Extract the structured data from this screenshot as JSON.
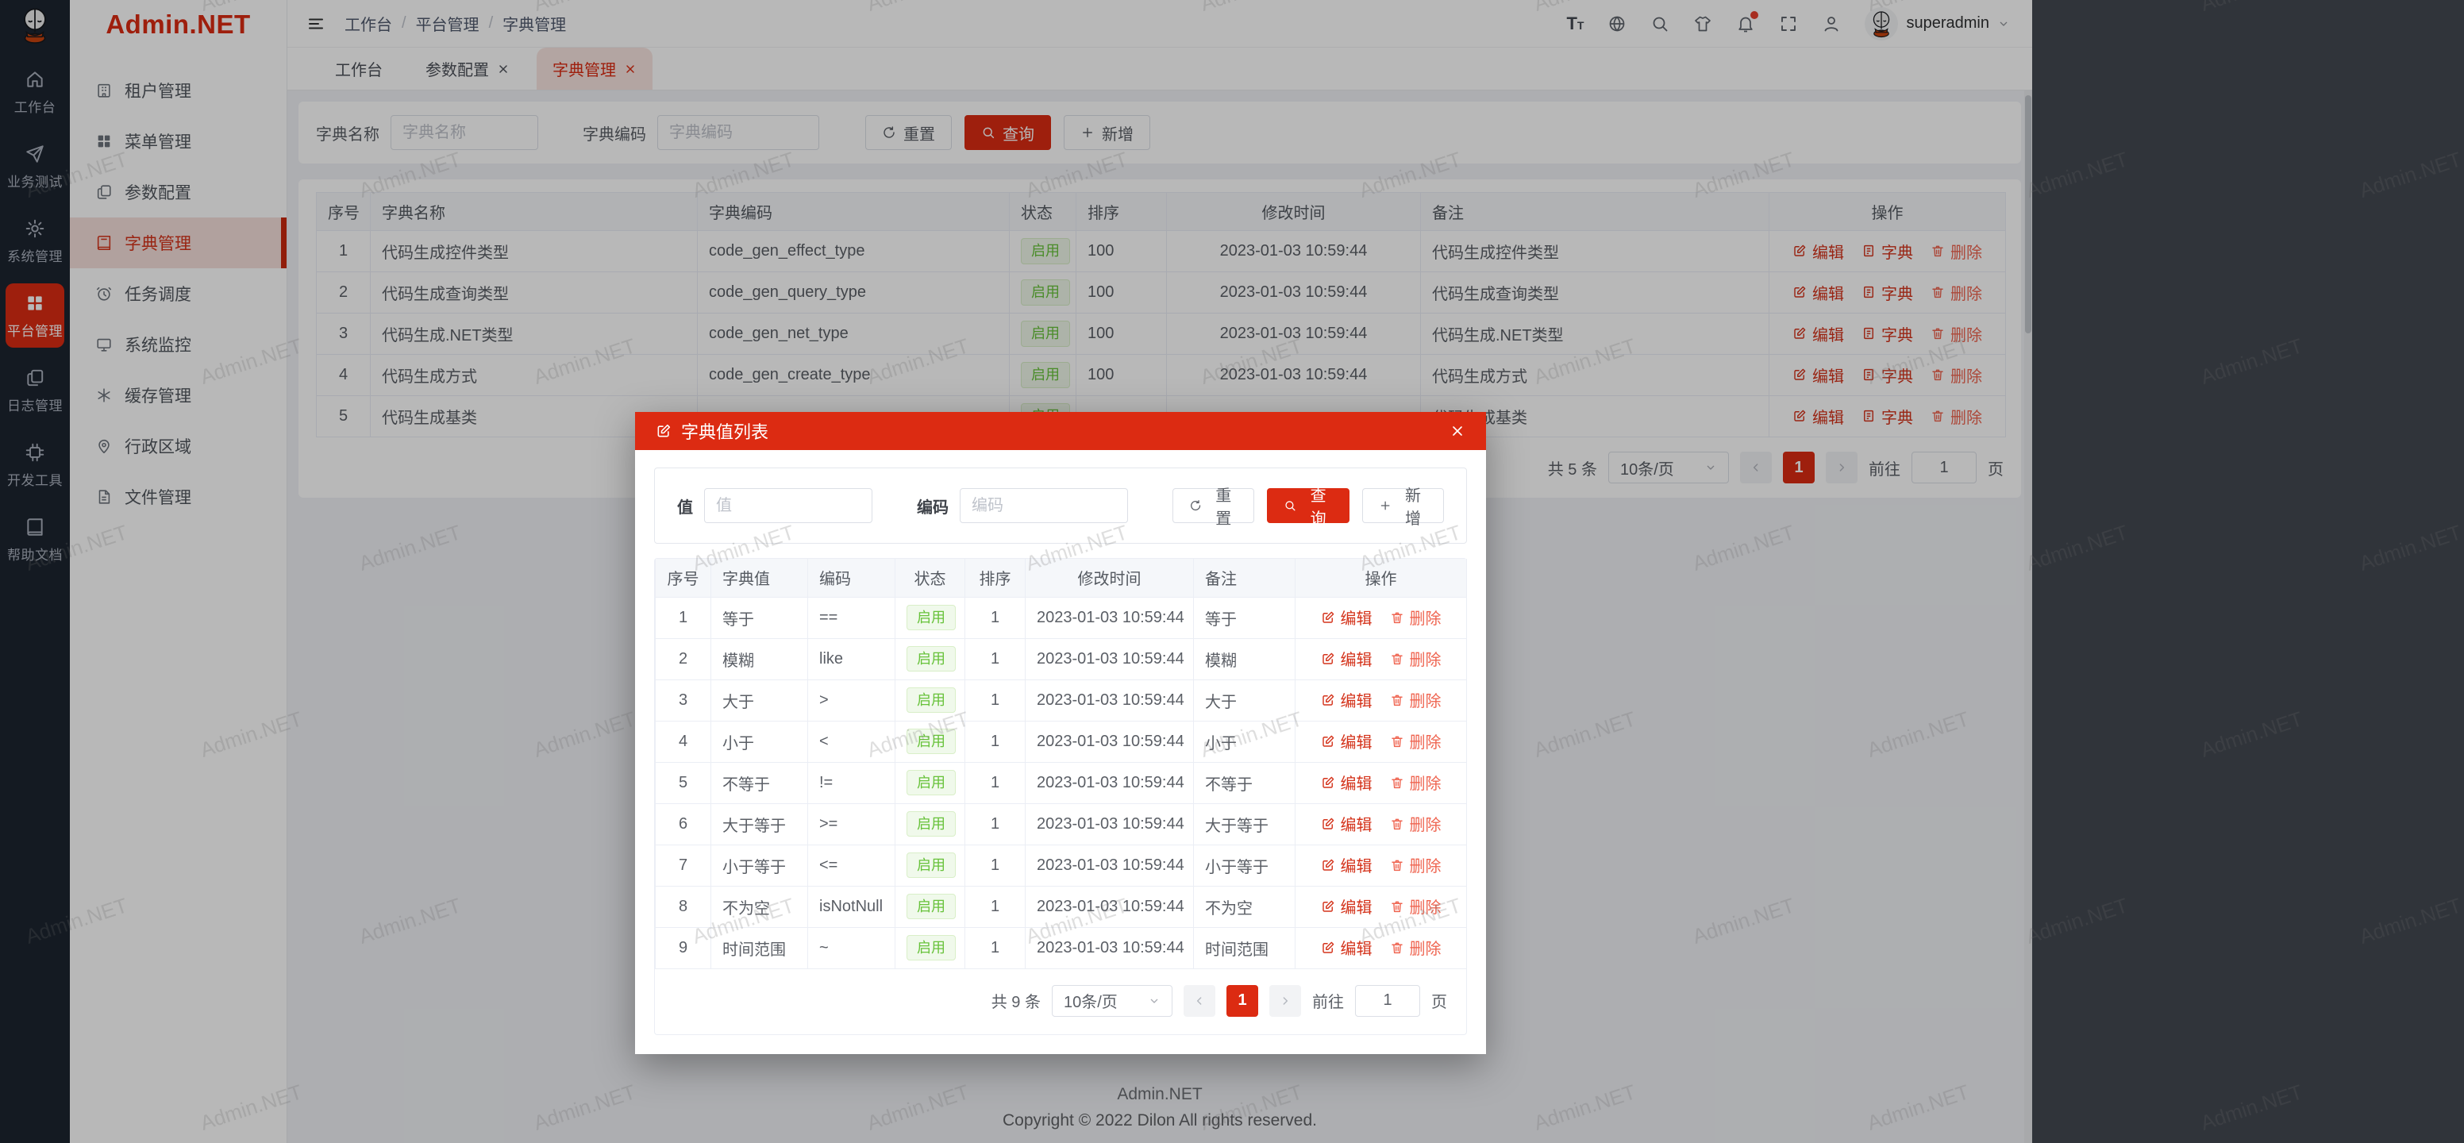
{
  "app": {
    "logo_text": "Admin.NET",
    "watermark": "Admin.NET",
    "footer_title": "Admin.NET",
    "footer_copyright": "Copyright © 2022 Dilon All rights reserved."
  },
  "colors": {
    "primary": "#dc2b12",
    "success": "#67c23a"
  },
  "dark_sidebar": {
    "items": [
      {
        "label": "工作台",
        "active": false
      },
      {
        "label": "业务测试",
        "active": false
      },
      {
        "label": "系统管理",
        "active": false
      },
      {
        "label": "平台管理",
        "active": true
      },
      {
        "label": "日志管理",
        "active": false
      },
      {
        "label": "开发工具",
        "active": false
      },
      {
        "label": "帮助文档",
        "active": false
      }
    ]
  },
  "menu_sidebar": {
    "items": [
      {
        "label": "租户管理",
        "active": false
      },
      {
        "label": "菜单管理",
        "active": false
      },
      {
        "label": "参数配置",
        "active": false
      },
      {
        "label": "字典管理",
        "active": true
      },
      {
        "label": "任务调度",
        "active": false
      },
      {
        "label": "系统监控",
        "active": false
      },
      {
        "label": "缓存管理",
        "active": false
      },
      {
        "label": "行政区域",
        "active": false
      },
      {
        "label": "文件管理",
        "active": false
      }
    ]
  },
  "navbar": {
    "breadcrumb": [
      "工作台",
      "平台管理",
      "字典管理"
    ],
    "username": "superadmin"
  },
  "tabs": [
    {
      "label": "工作台",
      "closable": false,
      "active": false
    },
    {
      "label": "参数配置",
      "closable": true,
      "active": false
    },
    {
      "label": "字典管理",
      "closable": true,
      "active": true
    }
  ],
  "search": {
    "name_label": "字典名称",
    "name_placeholder": "字典名称",
    "code_label": "字典编码",
    "code_placeholder": "字典编码",
    "reset_label": "重置",
    "query_label": "查询",
    "add_label": "新增"
  },
  "main_table": {
    "headers": [
      "序号",
      "字典名称",
      "字典编码",
      "状态",
      "排序",
      "修改时间",
      "备注",
      "操作"
    ],
    "ops": [
      "编辑",
      "字典",
      "删除"
    ],
    "rows": [
      {
        "no": "1",
        "name": "代码生成控件类型",
        "code": "code_gen_effect_type",
        "status": "启用",
        "sort": "100",
        "time": "2023-01-03 10:59:44",
        "remark": "代码生成控件类型"
      },
      {
        "no": "2",
        "name": "代码生成查询类型",
        "code": "code_gen_query_type",
        "status": "启用",
        "sort": "100",
        "time": "2023-01-03 10:59:44",
        "remark": "代码生成查询类型"
      },
      {
        "no": "3",
        "name": "代码生成.NET类型",
        "code": "code_gen_net_type",
        "status": "启用",
        "sort": "100",
        "time": "2023-01-03 10:59:44",
        "remark": "代码生成.NET类型"
      },
      {
        "no": "4",
        "name": "代码生成方式",
        "code": "code_gen_create_type",
        "status": "启用",
        "sort": "100",
        "time": "2023-01-03 10:59:44",
        "remark": "代码生成方式"
      },
      {
        "no": "5",
        "name": "代码生成基类",
        "code": "",
        "status": "启用",
        "sort": "",
        "time": "",
        "remark": "代码生成基类"
      }
    ]
  },
  "main_pagination": {
    "total": "共 5 条",
    "page_size": "10条/页",
    "page": "1",
    "goto_label": "前往",
    "goto_value": "1",
    "unit_label": "页"
  },
  "modal": {
    "title": "字典值列表",
    "search": {
      "value_label": "值",
      "value_placeholder": "值",
      "code_label": "编码",
      "code_placeholder": "编码",
      "reset_label": "重置",
      "query_label": "查询",
      "add_label": "新增"
    },
    "table": {
      "headers": [
        "序号",
        "字典值",
        "编码",
        "状态",
        "排序",
        "修改时间",
        "备注",
        "操作"
      ],
      "ops": [
        "编辑",
        "删除"
      ],
      "rows": [
        {
          "no": "1",
          "value": "等于",
          "code": "==",
          "status": "启用",
          "sort": "1",
          "time": "2023-01-03 10:59:44",
          "remark": "等于"
        },
        {
          "no": "2",
          "value": "模糊",
          "code": "like",
          "status": "启用",
          "sort": "1",
          "time": "2023-01-03 10:59:44",
          "remark": "模糊"
        },
        {
          "no": "3",
          "value": "大于",
          "code": ">",
          "status": "启用",
          "sort": "1",
          "time": "2023-01-03 10:59:44",
          "remark": "大于"
        },
        {
          "no": "4",
          "value": "小于",
          "code": "<",
          "status": "启用",
          "sort": "1",
          "time": "2023-01-03 10:59:44",
          "remark": "小于"
        },
        {
          "no": "5",
          "value": "不等于",
          "code": "!=",
          "status": "启用",
          "sort": "1",
          "time": "2023-01-03 10:59:44",
          "remark": "不等于"
        },
        {
          "no": "6",
          "value": "大于等于",
          "code": ">=",
          "status": "启用",
          "sort": "1",
          "time": "2023-01-03 10:59:44",
          "remark": "大于等于"
        },
        {
          "no": "7",
          "value": "小于等于",
          "code": "<=",
          "status": "启用",
          "sort": "1",
          "time": "2023-01-03 10:59:44",
          "remark": "小于等于"
        },
        {
          "no": "8",
          "value": "不为空",
          "code": "isNotNull",
          "status": "启用",
          "sort": "1",
          "time": "2023-01-03 10:59:44",
          "remark": "不为空"
        },
        {
          "no": "9",
          "value": "时间范围",
          "code": "~",
          "status": "启用",
          "sort": "1",
          "time": "2023-01-03 10:59:44",
          "remark": "时间范围"
        }
      ]
    },
    "pagination": {
      "total": "共 9 条",
      "page_size": "10条/页",
      "page": "1",
      "goto_label": "前往",
      "goto_value": "1",
      "unit_label": "页"
    }
  }
}
